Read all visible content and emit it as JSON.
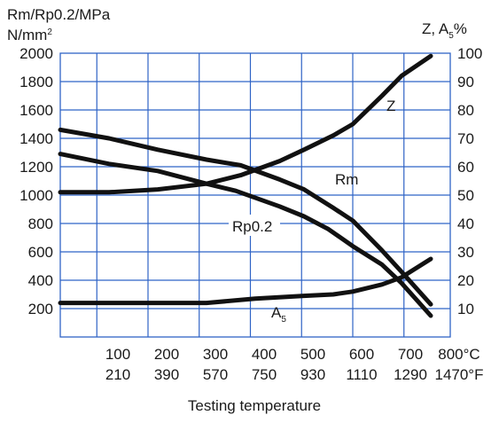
{
  "chart_data": {
    "type": "line",
    "left_axis": {
      "label_line1": "Rm/Rp0.2/MPa",
      "label_line2": "N/mm",
      "label_line2_sup": "2",
      "ticks": [
        "200",
        "400",
        "600",
        "800",
        "1000",
        "1200",
        "1400",
        "1600",
        "1800",
        "2000"
      ],
      "ylim": [
        0,
        2000
      ]
    },
    "right_axis": {
      "label": "Z, A",
      "label_sub": "5",
      "label_suffix": "%",
      "ticks": [
        "10",
        "20",
        "30",
        "40",
        "50",
        "60",
        "70",
        "80",
        "90",
        "100"
      ],
      "ylim": [
        0,
        100
      ]
    },
    "x_axis": {
      "label": "Testing temperature",
      "celsius_ticks": [
        "100",
        "200",
        "300",
        "400",
        "500",
        "600",
        "700",
        "800°C"
      ],
      "fahrenheit_ticks": [
        "210",
        "390",
        "570",
        "750",
        "930",
        "1110",
        "1290",
        "1470°F"
      ],
      "xlim": [
        0,
        800
      ],
      "grid_vertical_at": [
        75,
        180,
        285,
        390,
        495,
        600,
        705
      ],
      "gridlines_horizontal": 10
    },
    "grid": true,
    "series": [
      {
        "name": "Rm",
        "axis": "left",
        "x": [
          0,
          100,
          200,
          300,
          370,
          450,
          500,
          560,
          600,
          660,
          700,
          760
        ],
        "y": [
          1460,
          1400,
          1320,
          1250,
          1210,
          1110,
          1040,
          910,
          820,
          610,
          460,
          230
        ]
      },
      {
        "name": "Rp0.2",
        "axis": "left",
        "x": [
          0,
          100,
          200,
          300,
          360,
          450,
          500,
          550,
          600,
          660,
          700,
          760
        ],
        "y": [
          1290,
          1220,
          1170,
          1080,
          1030,
          920,
          850,
          760,
          640,
          510,
          380,
          150
        ]
      },
      {
        "name": "Z",
        "axis": "right",
        "x": [
          0,
          100,
          200,
          300,
          370,
          450,
          500,
          560,
          600,
          660,
          700,
          760
        ],
        "y": [
          51,
          51,
          52,
          54,
          57,
          62,
          66,
          71,
          75,
          85,
          92,
          99
        ]
      },
      {
        "name": "A",
        "name_sub": "5",
        "axis": "right",
        "x": [
          0,
          100,
          200,
          300,
          400,
          500,
          560,
          600,
          660,
          700,
          760
        ],
        "y": [
          12,
          12,
          12,
          12,
          13.5,
          14.5,
          15,
          16,
          18.5,
          21,
          27.5
        ]
      }
    ],
    "line_color": "#111111",
    "grid_color": "#2f63c6"
  }
}
